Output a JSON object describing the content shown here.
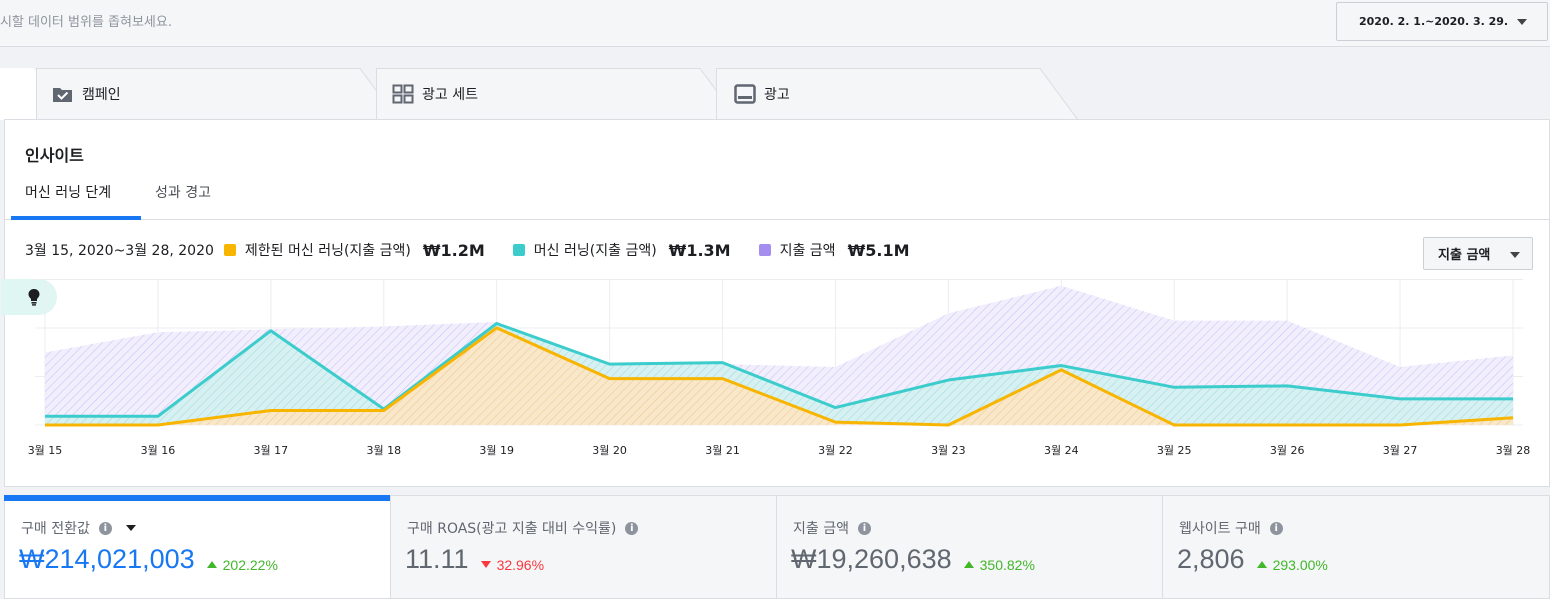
{
  "filter": {
    "hint": "표시할 데이터 범위를 좁혀보세요.",
    "date_range": "2020. 2. 1.~2020. 3. 29."
  },
  "tabs": [
    {
      "label": "캠페인",
      "icon": "campaign-folder-check-icon"
    },
    {
      "label": "광고 세트",
      "icon": "ad-set-grid-icon"
    },
    {
      "label": "광고",
      "icon": "ad-screen-icon"
    }
  ],
  "insights": {
    "title": "인사이트",
    "subtabs": [
      "머신 러닝 단계",
      "성과 경고"
    ],
    "metric_selector": "지출 금액",
    "range_label": "3월 15, 2020~3월 28, 2020",
    "legend": [
      {
        "label": "제한된 머신 러닝(지출 금액)",
        "value": "₩1.2M",
        "color": "#f7b500"
      },
      {
        "label": "머신 러닝(지출 금액)",
        "value": "₩1.3M",
        "color": "#3ccccc"
      },
      {
        "label": "지출 금액",
        "value": "₩5.1M",
        "color": "#a58ef0"
      }
    ]
  },
  "chart_data": {
    "type": "area",
    "x": [
      "3월 15",
      "3월 16",
      "3월 17",
      "3월 18",
      "3월 19",
      "3월 20",
      "3월 21",
      "3월 22",
      "3월 23",
      "3월 24",
      "3월 25",
      "3월 26",
      "3월 27",
      "3월 28"
    ],
    "ylim": [
      0,
      100
    ],
    "grid": true,
    "series": [
      {
        "name": "지출 금액",
        "color": "#a58ef0",
        "values": [
          50,
          64,
          66,
          68,
          71,
          42,
          42,
          40,
          77,
          96,
          72,
          72,
          40,
          48
        ]
      },
      {
        "name": "머신 러닝(지출 금액)",
        "color": "#3ccccc",
        "values": [
          6,
          6,
          65,
          11,
          70,
          42,
          43,
          12,
          31,
          41,
          26,
          27,
          18,
          18
        ]
      },
      {
        "name": "제한된 머신 러닝(지출 금액)",
        "color": "#f7b500",
        "values": [
          0,
          0,
          10,
          10,
          67,
          32,
          32,
          2,
          0,
          38,
          0,
          0,
          0,
          5
        ]
      }
    ]
  },
  "cards": [
    {
      "title": "구매 전환값",
      "value": "₩214,021,003",
      "change": "202.22%",
      "direction": "up"
    },
    {
      "title": "구매 ROAS(광고 지출 대비 수익률)",
      "value": "11.11",
      "change": "32.96%",
      "direction": "down"
    },
    {
      "title": "지출 금액",
      "value": "₩19,260,638",
      "change": "350.82%",
      "direction": "up"
    },
    {
      "title": "웹사이트 구매",
      "value": "2,806",
      "change": "293.00%",
      "direction": "up"
    }
  ]
}
